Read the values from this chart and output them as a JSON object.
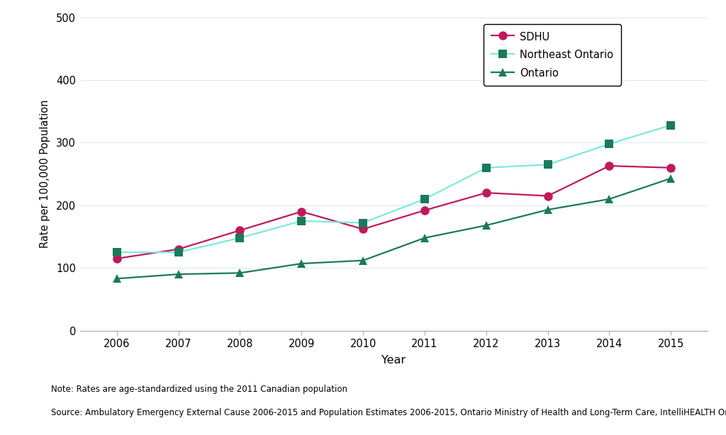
{
  "years": [
    2006,
    2007,
    2008,
    2009,
    2010,
    2011,
    2012,
    2013,
    2014,
    2015
  ],
  "sdhu": [
    115,
    130,
    160,
    190,
    162,
    192,
    220,
    215,
    263,
    260
  ],
  "northeast_ontario": [
    125,
    125,
    148,
    175,
    172,
    210,
    260,
    265,
    298,
    328
  ],
  "ontario": [
    83,
    90,
    92,
    107,
    112,
    148,
    168,
    193,
    210,
    243
  ],
  "sdhu_line_color": "#c0185c",
  "sdhu_marker_color": "#c0185c",
  "northeast_line_color": "#7de8e0",
  "northeast_marker_color": "#1a7a5a",
  "ontario_line_color": "#1a7a5a",
  "ontario_marker_color": "#1a7a5a",
  "ylabel": "Rate per 100,000 Population",
  "xlabel": "Year",
  "ylim": [
    0,
    500
  ],
  "yticks": [
    0,
    100,
    200,
    300,
    400,
    500
  ],
  "note_line1": "Note: Rates are age-standardized using the 2011 Canadian population",
  "note_line2": "Source: Ambulatory Emergency External Cause 2006-2015 and Population Estimates 2006-2015, Ontario Ministry of Health and Long-Term Care, IntelliHEALTH Ontario",
  "legend_labels": [
    "SDHU",
    "Northeast Ontario",
    "Ontario"
  ],
  "grid_color": "#dce9f5",
  "background_color": "#ffffff",
  "spine_color": "#aaaaaa",
  "tick_color": "#555555",
  "text_color": "#000000"
}
